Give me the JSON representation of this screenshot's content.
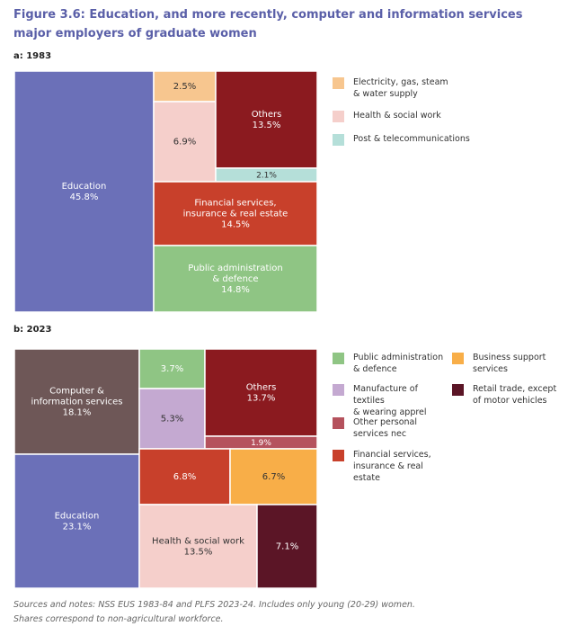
{
  "figure": {
    "title": "Figure 3.6: Education, and more recently, computer and information services major employers of graduate women",
    "notes_line1": "Sources and notes: NSS EUS 1983-84 and PLFS 2023-24. Includes only young (20-29) women.",
    "notes_line2": "Shares correspond to non-agricultural workforce."
  },
  "chart_data": [
    {
      "type": "treemap",
      "panel": "a: 1983",
      "tiles": [
        {
          "id": "education",
          "label": "Education",
          "value": 45.8,
          "value_label": "45.8%",
          "color": "#6b70b8",
          "text_color": "#ffffff"
        },
        {
          "id": "electricity",
          "label": "",
          "value": 2.5,
          "value_label": "2.5%",
          "color": "#f7c68f",
          "text_color": "#333333"
        },
        {
          "id": "health",
          "label": "",
          "value": 6.9,
          "value_label": "6.9%",
          "color": "#f5cfcb",
          "text_color": "#333333"
        },
        {
          "id": "others",
          "label": "Others",
          "value": 13.5,
          "value_label": "13.5%",
          "color": "#8b1a1f",
          "text_color": "#ffffff"
        },
        {
          "id": "post",
          "label": "",
          "value": 2.1,
          "value_label": "2.1%",
          "color": "#b5dfd9",
          "text_color": "#333333"
        },
        {
          "id": "financial",
          "label": "Financial services,\ninsurance & real estate",
          "value": 14.5,
          "value_label": "14.5%",
          "color": "#c8402b",
          "text_color": "#ffffff"
        },
        {
          "id": "public_admin",
          "label": "Public administration\n& defence",
          "value": 14.8,
          "value_label": "14.8%",
          "color": "#8fc584",
          "text_color": "#ffffff"
        }
      ],
      "legend": [
        {
          "label": "Electricity, gas, steam\n& water supply",
          "color": "#f7c68f"
        },
        {
          "label": "Health & social work",
          "color": "#f5cfcb"
        },
        {
          "label": "Post & telecommunications",
          "color": "#b5dfd9"
        }
      ]
    },
    {
      "type": "treemap",
      "panel": "b: 2023",
      "tiles": [
        {
          "id": "computer",
          "label": "Computer &\ninformation services",
          "value": 18.1,
          "value_label": "18.1%",
          "color": "#6e5757",
          "text_color": "#ffffff"
        },
        {
          "id": "education",
          "label": "Education",
          "value": 23.1,
          "value_label": "23.1%",
          "color": "#6b70b8",
          "text_color": "#ffffff"
        },
        {
          "id": "public_admin",
          "label": "",
          "value": 3.7,
          "value_label": "3.7%",
          "color": "#8fc584",
          "text_color": "#ffffff"
        },
        {
          "id": "textiles",
          "label": "",
          "value": 5.3,
          "value_label": "5.3%",
          "color": "#c4a9d1",
          "text_color": "#333333"
        },
        {
          "id": "others",
          "label": "Others",
          "value": 13.7,
          "value_label": "13.7%",
          "color": "#8b1a1f",
          "text_color": "#ffffff"
        },
        {
          "id": "other_personal",
          "label": "",
          "value": 1.9,
          "value_label": "1.9%",
          "color": "#b5525d",
          "text_color": "#ffffff"
        },
        {
          "id": "financial",
          "label": "",
          "value": 6.8,
          "value_label": "6.8%",
          "color": "#c8402b",
          "text_color": "#ffffff"
        },
        {
          "id": "business",
          "label": "",
          "value": 6.7,
          "value_label": "6.7%",
          "color": "#f8ae48",
          "text_color": "#333333"
        },
        {
          "id": "health",
          "label": "Health & social work",
          "value": 13.5,
          "value_label": "13.5%",
          "color": "#f5cfcb",
          "text_color": "#333333"
        },
        {
          "id": "retail",
          "label": "",
          "value": 7.1,
          "value_label": "7.1%",
          "color": "#5b1526",
          "text_color": "#ffffff"
        }
      ],
      "legend": [
        {
          "label": "Public administration\n& defence",
          "color": "#8fc584"
        },
        {
          "label": "Manufacture of textiles\n& wearing apprel",
          "color": "#c4a9d1"
        },
        {
          "label": "Other personal\nservices nec",
          "color": "#b5525d"
        },
        {
          "label": "Financial services,\ninsurance & real estate",
          "color": "#c8402b"
        },
        {
          "label": "Business support\nservices",
          "color": "#f8ae48"
        },
        {
          "label": "Retail trade, except\nof motor vehicles",
          "color": "#5b1526"
        }
      ]
    }
  ]
}
